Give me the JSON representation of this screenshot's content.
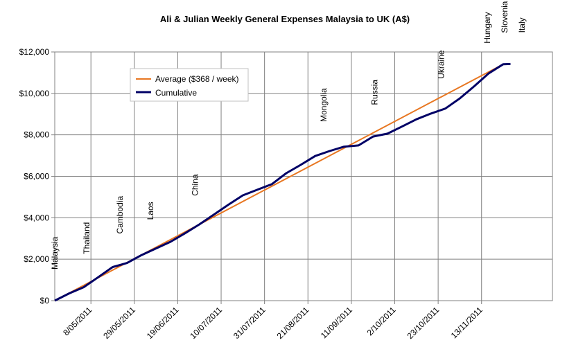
{
  "chart_data": {
    "type": "line",
    "title": "Ali & Julian Weekly General Expenses Malaysia to UK (A$)",
    "xlabel": "",
    "ylabel": "",
    "x_axis": "week",
    "x_range": [
      0,
      34.4
    ],
    "ylim": [
      0,
      12000
    ],
    "y_ticks": [
      0,
      2000,
      4000,
      6000,
      8000,
      10000,
      12000
    ],
    "y_tick_labels": [
      "$0",
      "$2,000",
      "$4,000",
      "$6,000",
      "$8,000",
      "$10,000",
      "$12,000"
    ],
    "x_tick_labels": [
      "8/05/2011",
      "29/05/2011",
      "19/06/2011",
      "10/07/2011",
      "31/07/2011",
      "21/08/2011",
      "11/09/2011",
      "2/10/2011",
      "23/10/2011",
      "13/11/2011"
    ],
    "grid": true,
    "legend_position": "top-left",
    "series": [
      {
        "name": "Average ($368 / week)",
        "color": "#e87722",
        "points": [
          [
            0,
            0
          ],
          [
            31,
            11408
          ]
        ]
      },
      {
        "name": "Cumulative",
        "color": "#000066",
        "points": [
          [
            0,
            0
          ],
          [
            1,
            350
          ],
          [
            2,
            650
          ],
          [
            3,
            1130
          ],
          [
            4,
            1620
          ],
          [
            5,
            1820
          ],
          [
            6,
            2200
          ],
          [
            7,
            2520
          ],
          [
            8,
            2840
          ],
          [
            9,
            3250
          ],
          [
            10,
            3680
          ],
          [
            11,
            4150
          ],
          [
            12,
            4630
          ],
          [
            13,
            5080
          ],
          [
            14,
            5350
          ],
          [
            15,
            5620
          ],
          [
            16,
            6150
          ],
          [
            17,
            6550
          ],
          [
            18,
            6980
          ],
          [
            19,
            7220
          ],
          [
            20,
            7430
          ],
          [
            21,
            7490
          ],
          [
            22,
            7920
          ],
          [
            23,
            8060
          ],
          [
            24,
            8400
          ],
          [
            25,
            8750
          ],
          [
            26,
            9030
          ],
          [
            27,
            9270
          ],
          [
            28,
            9760
          ],
          [
            29,
            10350
          ],
          [
            30,
            10970
          ],
          [
            31,
            11408
          ],
          [
            31.5,
            11420
          ]
        ]
      }
    ],
    "annotations": [
      {
        "text": "Malaysia",
        "x": 0
      },
      {
        "text": "Thailand",
        "x": 2.2
      },
      {
        "text": "Cambodia",
        "x": 4.5
      },
      {
        "text": "Laos",
        "x": 6.6
      },
      {
        "text": "China",
        "x": 9.7
      },
      {
        "text": "Mongolia",
        "x": 18.6
      },
      {
        "text": "Russia",
        "x": 22.1
      },
      {
        "text": "Ukraine",
        "x": 26.7
      },
      {
        "text": "Hungary",
        "x": 29.9
      },
      {
        "text": "Slovenia",
        "x": 31.1
      },
      {
        "text": "Italy",
        "x": 32.3
      }
    ]
  }
}
